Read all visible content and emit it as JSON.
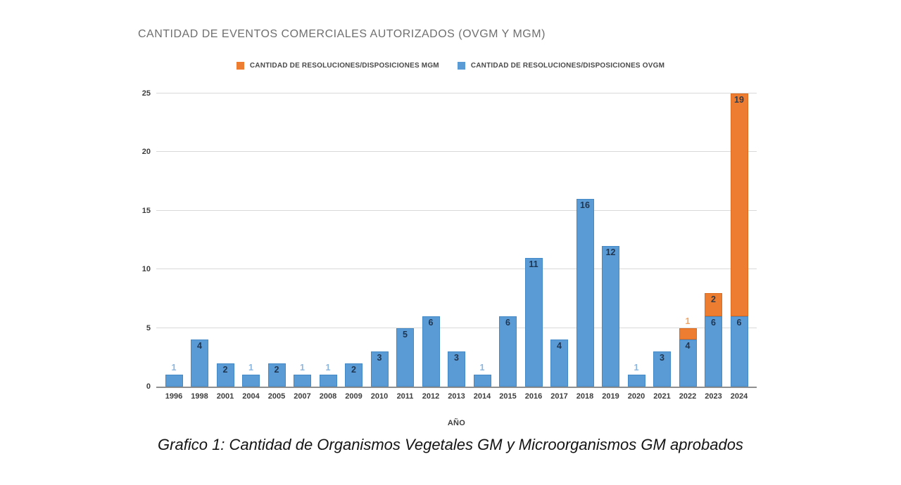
{
  "caption": "Grafico 1: Cantidad de Organismos Vegetales GM y Microorganismos GM aprobados",
  "chart_data": {
    "type": "bar",
    "stacked": true,
    "title": "CANTIDAD DE EVENTOS COMERCIALES AUTORIZADOS (OVGM Y MGM)",
    "xlabel": "AÑO",
    "ylabel": "",
    "ylim": [
      0,
      25
    ],
    "yticks": [
      0,
      5,
      10,
      15,
      20,
      25
    ],
    "grid": "horizontal",
    "legend_position": "top-center",
    "categories": [
      "1996",
      "1998",
      "2001",
      "2004",
      "2005",
      "2007",
      "2008",
      "2009",
      "2010",
      "2011",
      "2012",
      "2013",
      "2014",
      "2015",
      "2016",
      "2017",
      "2018",
      "2019",
      "2020",
      "2021",
      "2022",
      "2023",
      "2024"
    ],
    "series": [
      {
        "name": "CANTIDAD DE RESOLUCIONES/DISPOSICIONES OVGM",
        "role": "ovgm",
        "color": "#5b9bd5",
        "border_color": "#4389c8",
        "label_color_inside": "#1f3550",
        "label_color_outside": "#8cb6de",
        "values": [
          1,
          4,
          2,
          1,
          2,
          1,
          1,
          2,
          3,
          5,
          6,
          3,
          1,
          6,
          11,
          4,
          16,
          12,
          1,
          3,
          4,
          6,
          6
        ]
      },
      {
        "name": "CANTIDAD DE RESOLUCIONES/DISPOSICIONES MGM",
        "role": "mgm",
        "color": "#ed7d31",
        "border_color": "#dd6a1d",
        "label_color_inside": "#313b49",
        "label_color_outside": "#f0a668",
        "values": [
          0,
          0,
          0,
          0,
          0,
          0,
          0,
          0,
          0,
          0,
          0,
          0,
          0,
          0,
          0,
          0,
          0,
          0,
          0,
          0,
          1,
          2,
          19
        ]
      }
    ],
    "legend": [
      {
        "label": "CANTIDAD DE RESOLUCIONES/DISPOSICIONES MGM",
        "color": "#ed7d31"
      },
      {
        "label": "CANTIDAD DE RESOLUCIONES/DISPOSICIONES OVGM",
        "color": "#5b9bd5"
      }
    ]
  }
}
